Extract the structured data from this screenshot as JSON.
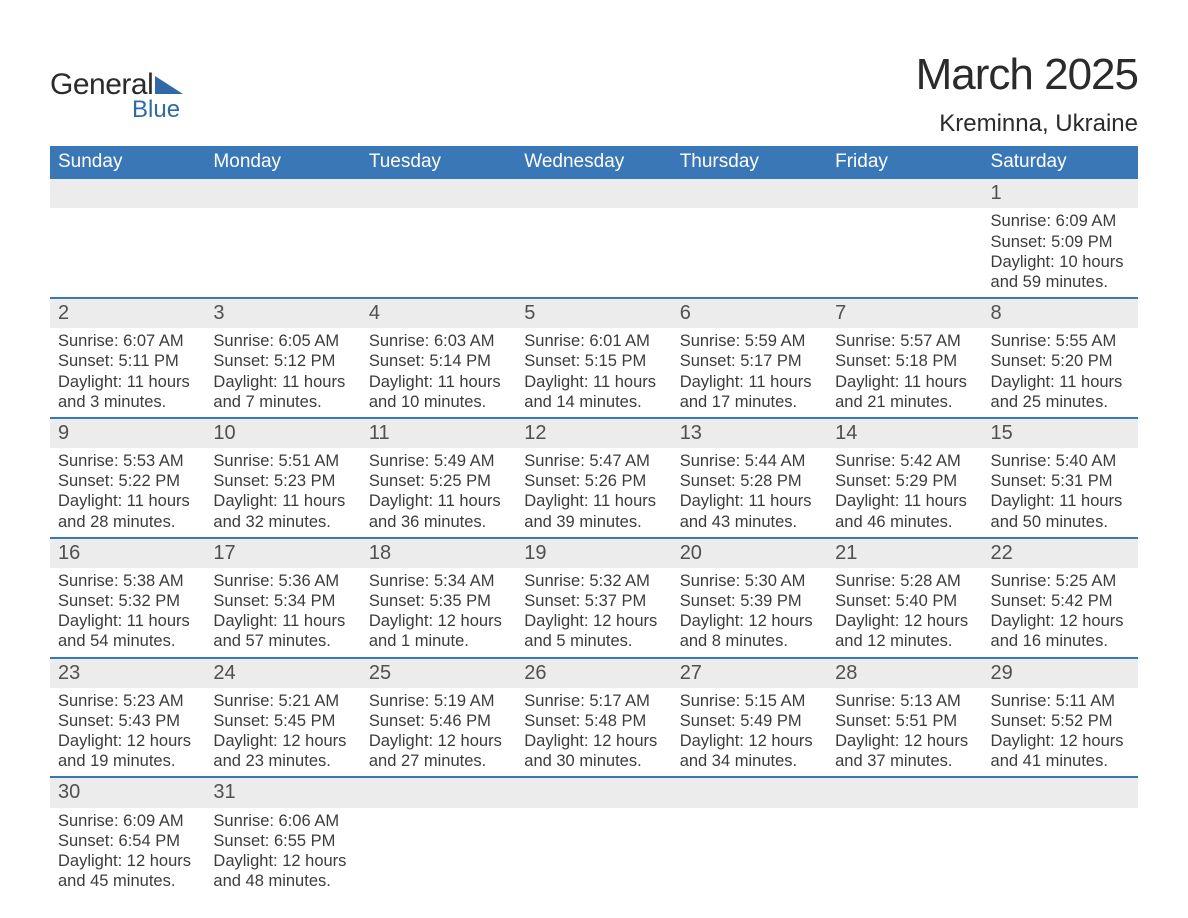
{
  "logo": {
    "text1": "General",
    "text2": "Blue"
  },
  "title": "March 2025",
  "location": "Kreminna, Ukraine",
  "colors": {
    "header_bg": "#3a77b7",
    "header_text": "#ffffff",
    "daynum_bg": "#ececec",
    "row_divider": "#3a77b7",
    "body_text": "#3c3c3c",
    "logo_blue": "#2f6aa8"
  },
  "fonts": {
    "title_pt": 44,
    "location_pt": 24,
    "th_pt": 19,
    "daynum_pt": 20,
    "body_pt": 16.5
  },
  "daysOfWeek": [
    "Sunday",
    "Monday",
    "Tuesday",
    "Wednesday",
    "Thursday",
    "Friday",
    "Saturday"
  ],
  "weeks": [
    [
      null,
      null,
      null,
      null,
      null,
      null,
      {
        "n": "1",
        "sunrise": "6:09 AM",
        "sunset": "5:09 PM",
        "daylight1": "10 hours",
        "daylight2": "and 59 minutes."
      }
    ],
    [
      {
        "n": "2",
        "sunrise": "6:07 AM",
        "sunset": "5:11 PM",
        "daylight1": "11 hours",
        "daylight2": "and 3 minutes."
      },
      {
        "n": "3",
        "sunrise": "6:05 AM",
        "sunset": "5:12 PM",
        "daylight1": "11 hours",
        "daylight2": "and 7 minutes."
      },
      {
        "n": "4",
        "sunrise": "6:03 AM",
        "sunset": "5:14 PM",
        "daylight1": "11 hours",
        "daylight2": "and 10 minutes."
      },
      {
        "n": "5",
        "sunrise": "6:01 AM",
        "sunset": "5:15 PM",
        "daylight1": "11 hours",
        "daylight2": "and 14 minutes."
      },
      {
        "n": "6",
        "sunrise": "5:59 AM",
        "sunset": "5:17 PM",
        "daylight1": "11 hours",
        "daylight2": "and 17 minutes."
      },
      {
        "n": "7",
        "sunrise": "5:57 AM",
        "sunset": "5:18 PM",
        "daylight1": "11 hours",
        "daylight2": "and 21 minutes."
      },
      {
        "n": "8",
        "sunrise": "5:55 AM",
        "sunset": "5:20 PM",
        "daylight1": "11 hours",
        "daylight2": "and 25 minutes."
      }
    ],
    [
      {
        "n": "9",
        "sunrise": "5:53 AM",
        "sunset": "5:22 PM",
        "daylight1": "11 hours",
        "daylight2": "and 28 minutes."
      },
      {
        "n": "10",
        "sunrise": "5:51 AM",
        "sunset": "5:23 PM",
        "daylight1": "11 hours",
        "daylight2": "and 32 minutes."
      },
      {
        "n": "11",
        "sunrise": "5:49 AM",
        "sunset": "5:25 PM",
        "daylight1": "11 hours",
        "daylight2": "and 36 minutes."
      },
      {
        "n": "12",
        "sunrise": "5:47 AM",
        "sunset": "5:26 PM",
        "daylight1": "11 hours",
        "daylight2": "and 39 minutes."
      },
      {
        "n": "13",
        "sunrise": "5:44 AM",
        "sunset": "5:28 PM",
        "daylight1": "11 hours",
        "daylight2": "and 43 minutes."
      },
      {
        "n": "14",
        "sunrise": "5:42 AM",
        "sunset": "5:29 PM",
        "daylight1": "11 hours",
        "daylight2": "and 46 minutes."
      },
      {
        "n": "15",
        "sunrise": "5:40 AM",
        "sunset": "5:31 PM",
        "daylight1": "11 hours",
        "daylight2": "and 50 minutes."
      }
    ],
    [
      {
        "n": "16",
        "sunrise": "5:38 AM",
        "sunset": "5:32 PM",
        "daylight1": "11 hours",
        "daylight2": "and 54 minutes."
      },
      {
        "n": "17",
        "sunrise": "5:36 AM",
        "sunset": "5:34 PM",
        "daylight1": "11 hours",
        "daylight2": "and 57 minutes."
      },
      {
        "n": "18",
        "sunrise": "5:34 AM",
        "sunset": "5:35 PM",
        "daylight1": "12 hours",
        "daylight2": "and 1 minute."
      },
      {
        "n": "19",
        "sunrise": "5:32 AM",
        "sunset": "5:37 PM",
        "daylight1": "12 hours",
        "daylight2": "and 5 minutes."
      },
      {
        "n": "20",
        "sunrise": "5:30 AM",
        "sunset": "5:39 PM",
        "daylight1": "12 hours",
        "daylight2": "and 8 minutes."
      },
      {
        "n": "21",
        "sunrise": "5:28 AM",
        "sunset": "5:40 PM",
        "daylight1": "12 hours",
        "daylight2": "and 12 minutes."
      },
      {
        "n": "22",
        "sunrise": "5:25 AM",
        "sunset": "5:42 PM",
        "daylight1": "12 hours",
        "daylight2": "and 16 minutes."
      }
    ],
    [
      {
        "n": "23",
        "sunrise": "5:23 AM",
        "sunset": "5:43 PM",
        "daylight1": "12 hours",
        "daylight2": "and 19 minutes."
      },
      {
        "n": "24",
        "sunrise": "5:21 AM",
        "sunset": "5:45 PM",
        "daylight1": "12 hours",
        "daylight2": "and 23 minutes."
      },
      {
        "n": "25",
        "sunrise": "5:19 AM",
        "sunset": "5:46 PM",
        "daylight1": "12 hours",
        "daylight2": "and 27 minutes."
      },
      {
        "n": "26",
        "sunrise": "5:17 AM",
        "sunset": "5:48 PM",
        "daylight1": "12 hours",
        "daylight2": "and 30 minutes."
      },
      {
        "n": "27",
        "sunrise": "5:15 AM",
        "sunset": "5:49 PM",
        "daylight1": "12 hours",
        "daylight2": "and 34 minutes."
      },
      {
        "n": "28",
        "sunrise": "5:13 AM",
        "sunset": "5:51 PM",
        "daylight1": "12 hours",
        "daylight2": "and 37 minutes."
      },
      {
        "n": "29",
        "sunrise": "5:11 AM",
        "sunset": "5:52 PM",
        "daylight1": "12 hours",
        "daylight2": "and 41 minutes."
      }
    ],
    [
      {
        "n": "30",
        "sunrise": "6:09 AM",
        "sunset": "6:54 PM",
        "daylight1": "12 hours",
        "daylight2": "and 45 minutes."
      },
      {
        "n": "31",
        "sunrise": "6:06 AM",
        "sunset": "6:55 PM",
        "daylight1": "12 hours",
        "daylight2": "and 48 minutes."
      },
      null,
      null,
      null,
      null,
      null
    ]
  ],
  "labels": {
    "sunrise": "Sunrise:",
    "sunset": "Sunset:",
    "daylight": "Daylight:"
  }
}
